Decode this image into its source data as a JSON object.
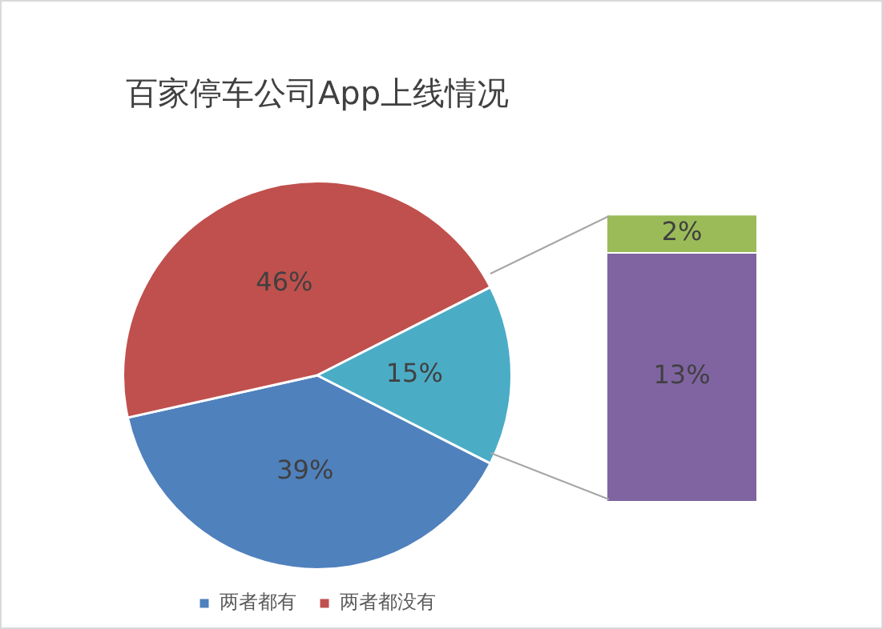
{
  "chart_data": [
    {
      "type": "pie",
      "title": "百家停车公司App上线情况",
      "categories": [
        "两者都有",
        "两者都没有",
        null
      ],
      "values": [
        39,
        46,
        15
      ],
      "colors": [
        "#4f81bd",
        "#c0504d",
        "#4bacc6"
      ],
      "value_labels": [
        "39%",
        "46%",
        "15%"
      ],
      "legend": "bottom"
    },
    {
      "type": "bar",
      "stacked": true,
      "tick_labels": false,
      "categories": [
        null
      ],
      "series": [
        {
          "color": "#8064a2",
          "values": [
            13
          ],
          "value_labels": [
            "13%"
          ]
        },
        {
          "color": "#9bbb59",
          "values": [
            2
          ],
          "value_labels": [
            "2%"
          ]
        }
      ]
    }
  ]
}
